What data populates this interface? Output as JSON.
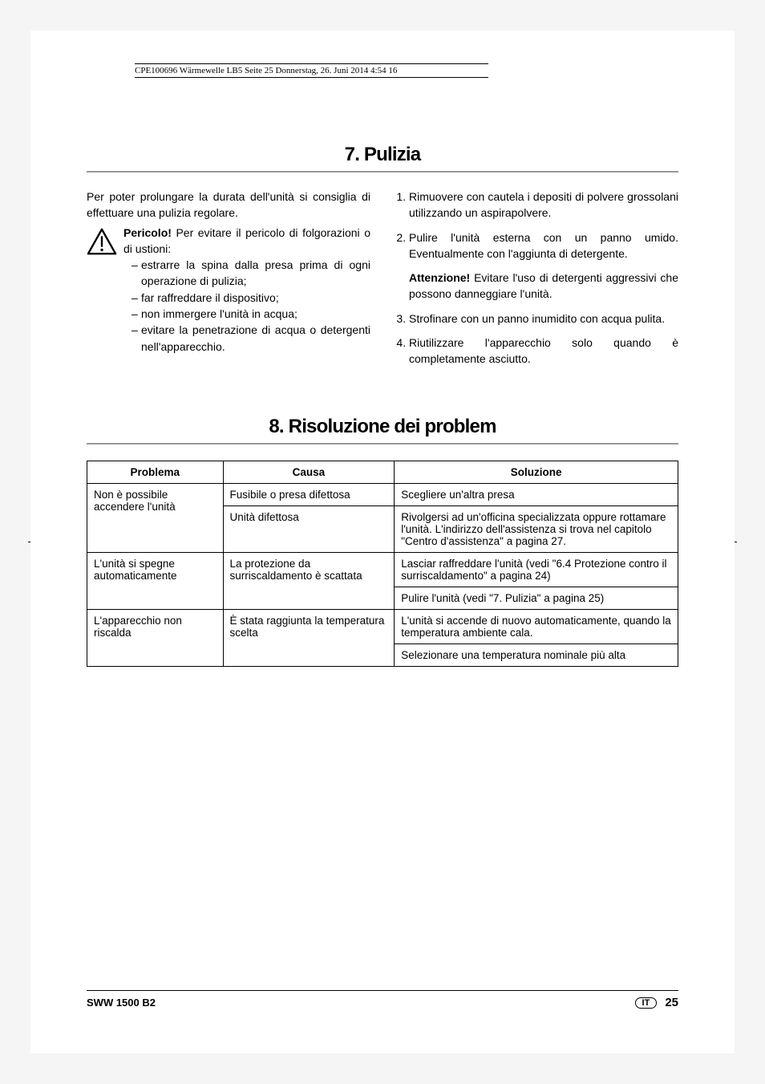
{
  "header_line": "CPE100696 Wärmewelle LB5  Seite 25  Donnerstag, 26. Juni 2014  4:54 16",
  "section7": {
    "title": "7. Pulizia",
    "intro": "Per poter prolungare la durata dell'unità si consiglia di effettuare una pulizia regolare.",
    "pericolo_label": "Pericolo!",
    "pericolo_text": " Per evitare il pericolo di folgorazioni o di ustioni:",
    "bullets": [
      "estrarre la spina dalla presa prima di ogni operazione di pulizia;",
      "far raffreddare il dispositivo;",
      "non immergere l'unità in acqua;",
      "evitare la penetrazione di acqua o detergenti nell'apparecchio."
    ],
    "steps_1_2": [
      "Rimuovere con cautela i depositi di polvere grossolani utilizzando un aspirapolvere.",
      "Pulire l'unità esterna con un panno umido. Eventualmente con l'aggiunta di detergente."
    ],
    "attenzione_label": "Attenzione!",
    "attenzione_text": " Evitare l'uso di detergenti aggressivi che possono danneggiare l'unità.",
    "steps_3_4": [
      "Strofinare con un panno inumidito con acqua pulita.",
      "Riutilizzare l'apparecchio solo quando è completamente asciutto."
    ]
  },
  "section8": {
    "title": "8. Risoluzione dei problem",
    "headers": {
      "problema": "Problema",
      "causa": "Causa",
      "soluzione": "Soluzione"
    },
    "rows": [
      {
        "problema": "Non è possibile accendere l'unità",
        "causa": "Fusibile o presa difettosa",
        "soluzione": "Scegliere un'altra presa",
        "problema_rowspan": 2
      },
      {
        "causa": "Unità difettosa",
        "soluzione": "Rivolgersi ad un'officina specializzata oppure rottamare l'unità. L'indirizzo dell'assistenza si trova nel capitolo \"Centro d'assistenza\" a pagina 27."
      },
      {
        "problema": "L'unità si spegne automaticamente",
        "causa": "La protezione da surriscaldamento è scattata",
        "soluzione": "Lasciar raffreddare l'unità (vedi \"6.4 Protezione contro il surriscaldamento\" a pagina 24)",
        "problema_rowspan": 2,
        "causa_rowspan": 2
      },
      {
        "soluzione": "Pulire l'unità (vedi \"7. Pulizia\" a pagina 25)"
      },
      {
        "problema": "L'apparecchio non riscalda",
        "causa": "È stata raggiunta la temperatura scelta",
        "soluzione": "L'unità si accende di nuovo automaticamente, quando la temperatura ambiente cala.",
        "problema_rowspan": 2,
        "causa_rowspan": 2
      },
      {
        "soluzione": "Selezionare una temperatura nominale più alta"
      }
    ]
  },
  "footer": {
    "model": "SWW 1500 B2",
    "lang": "IT",
    "page": "25"
  }
}
